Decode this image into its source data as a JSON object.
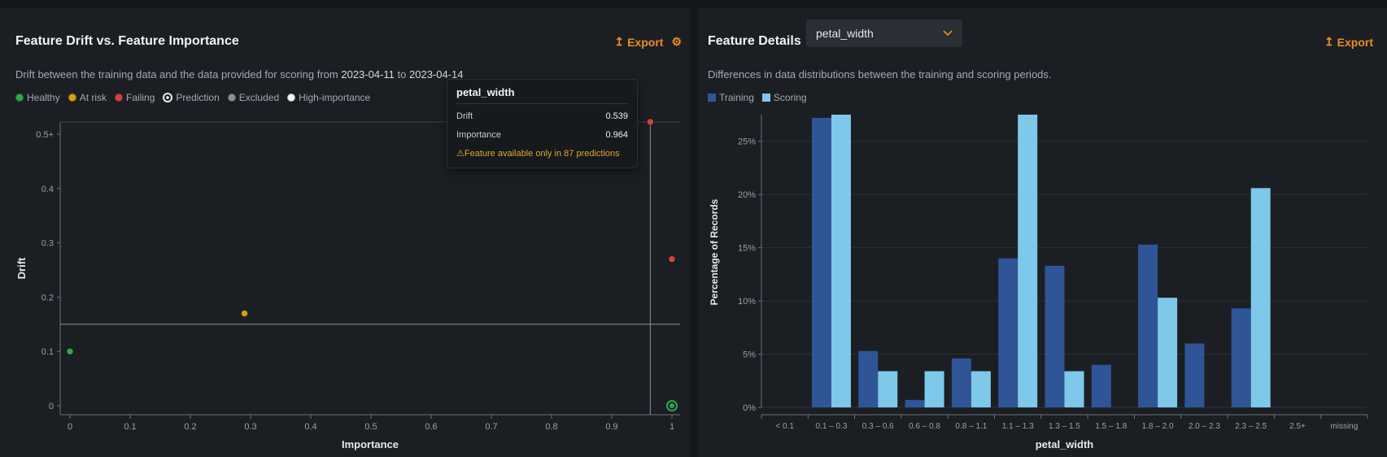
{
  "left": {
    "title": "Feature Drift vs. Feature Importance",
    "export_label": "Export",
    "subtitle_prefix": "Drift between the training data and the data provided for scoring from",
    "date_from": "2023-04-11",
    "date_to_word": "to",
    "date_to": "2023-04-14",
    "legend": [
      {
        "label": "Healthy",
        "color": "#2fa84f",
        "shape": "dot"
      },
      {
        "label": "At risk",
        "color": "#d4a017",
        "shape": "dot"
      },
      {
        "label": "Failing",
        "color": "#d0443e",
        "shape": "dot"
      },
      {
        "label": "Prediction",
        "color": "#e8eaed",
        "shape": "target"
      },
      {
        "label": "Excluded",
        "color": "#8b9096",
        "shape": "dot"
      },
      {
        "label": "High-importance",
        "color": "#f4f5f6",
        "shape": "dot"
      }
    ],
    "tooltip": {
      "feature": "petal_width",
      "drift_label": "Drift",
      "drift_value": "0.539",
      "importance_label": "Importance",
      "importance_value": "0.964",
      "warning": "Feature available only in 87 predictions"
    }
  },
  "right": {
    "title": "Feature Details",
    "selected_feature": "petal_width",
    "export_label": "Export",
    "subtitle": "Differences in data distributions between the training and scoring periods.",
    "legend": [
      {
        "label": "Training",
        "color": "#2f5597"
      },
      {
        "label": "Scoring",
        "color": "#7ec8e9"
      }
    ]
  },
  "chart_data": [
    {
      "type": "scatter",
      "title": "Feature Drift vs. Feature Importance",
      "xlabel": "Importance",
      "ylabel": "Drift",
      "xlim": [
        0,
        1
      ],
      "ylim": [
        0,
        0.5
      ],
      "x_ticks": [
        "0",
        "0.1",
        "0.2",
        "0.3",
        "0.4",
        "0.5",
        "0.6",
        "0.7",
        "0.8",
        "0.9",
        "1"
      ],
      "y_ticks": [
        "0",
        "0.1",
        "0.2",
        "0.3",
        "0.4",
        "0.5+"
      ],
      "thresholds": {
        "drift": 0.15,
        "importance": 0.964
      },
      "points": [
        {
          "x": 0.0,
          "y": 0.1,
          "status": "healthy",
          "color": "#2fa84f"
        },
        {
          "x": 0.29,
          "y": 0.17,
          "status": "at-risk",
          "color": "#d4a017"
        },
        {
          "x": 1.0,
          "y": 0.27,
          "status": "failing",
          "color": "#d0443e"
        },
        {
          "x": 0.964,
          "y": 0.539,
          "status": "failing",
          "color": "#d0443e",
          "capped": true
        },
        {
          "x": 1.0,
          "y": 0.0,
          "status": "prediction",
          "color": "#2fa84f",
          "target": true
        }
      ]
    },
    {
      "type": "bar",
      "xlabel": "petal_width",
      "ylabel": "Percentage of Records",
      "ylim": [
        0,
        27.5
      ],
      "y_ticks": [
        "0%",
        "5%",
        "10%",
        "15%",
        "20%",
        "25%"
      ],
      "categories": [
        "< 0.1",
        "0.1 – 0.3",
        "0.3 – 0.6",
        "0.6 – 0.8",
        "0.8 – 1.1",
        "1.1 – 1.3",
        "1.3 – 1.5",
        "1.5 – 1.8",
        "1.8 – 2.0",
        "2.0 – 2.3",
        "2.3 – 2.5",
        "2.5+",
        "missing"
      ],
      "series": [
        {
          "name": "Training",
          "color": "#2f5597",
          "values": [
            0,
            27.2,
            5.3,
            0.7,
            4.6,
            14.0,
            13.3,
            4.0,
            15.3,
            6.0,
            9.3,
            0,
            0
          ]
        },
        {
          "name": "Scoring",
          "color": "#7ec8e9",
          "values": [
            0,
            27.5,
            3.4,
            3.4,
            3.4,
            27.5,
            3.4,
            0,
            10.3,
            0,
            20.6,
            0,
            0
          ]
        }
      ]
    }
  ]
}
